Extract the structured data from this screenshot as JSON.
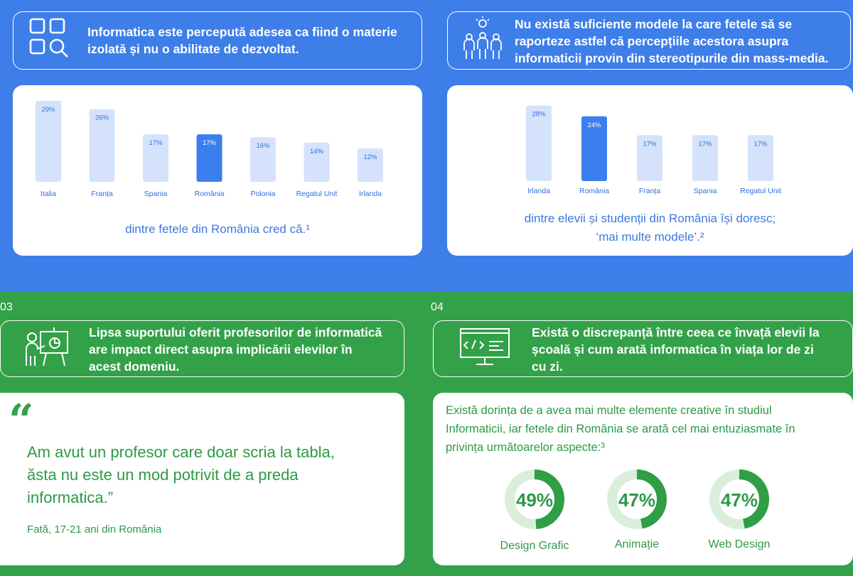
{
  "section1": {
    "header": "Informatica este percepută adesea ca fiind o materie izolată și nu o abilitate de dezvoltat.",
    "header_icon": "grid-search-icon",
    "caption": "dintre fetele din România cred că.¹"
  },
  "section2": {
    "header": "Nu există suficiente modele la care fetele să se raporteze astfel că percepțiile acestora asupra informaticii provin din stereotipurile din mass-media.",
    "header_icon": "people-idea-icon",
    "caption_line1": "dintre elevii și studenții din România își doresc;",
    "caption_line2": "‘mai multe modele’.²"
  },
  "section3": {
    "number": "03",
    "header": "Lipsa suportului oferit profesorilor de informatică are impact direct asupra implicării elevilor în acest domeniu.",
    "header_icon": "teacher-board-icon",
    "quote_mark": "“",
    "quote": "Am avut un profesor care doar scria la tabla, ăsta nu este un mod potrivit de a preda informatica.”",
    "author": "Fată, 17-21 ani din România"
  },
  "section4": {
    "number": "04",
    "header": "Există o discrepanță între ceea ce învață elevii la școală și cum arată informatica în viața lor de zi cu zi.",
    "header_icon": "code-monitor-icon",
    "intro": "Există dorința de a avea mai multe elemente creative în studiul Informaticii, iar fetele din România se arată cel mai entuziasmate în privința următoarelor aspecte:³"
  },
  "colors": {
    "blue_bg": "#3d7ee9",
    "green_bg": "#33a148",
    "bar_light": "#d4e3fb",
    "bar_highlight": "#3b7ef0",
    "donut_track": "#d9efdc",
    "donut_fill": "#2f9e45"
  },
  "chart_data": [
    {
      "type": "bar",
      "categories": [
        "Italia",
        "Franța",
        "Spania",
        "România",
        "Polonia",
        "Regatul Unit",
        "Irlanda"
      ],
      "values": [
        29,
        26,
        17,
        17,
        16,
        14,
        12
      ],
      "value_labels": [
        "29%",
        "26%",
        "17%",
        "17%",
        "16%",
        "14%",
        "12%"
      ],
      "highlight": "România",
      "ylim": [
        0,
        30
      ]
    },
    {
      "type": "bar",
      "categories": [
        "Irlanda",
        "România",
        "Franța",
        "Spania",
        "Regatul Unit"
      ],
      "values": [
        28,
        24,
        17,
        17,
        17
      ],
      "value_labels": [
        "28%",
        "24%",
        "17%",
        "17%",
        "17%"
      ],
      "highlight": "România",
      "ylim": [
        0,
        30
      ]
    },
    {
      "type": "pie",
      "categories": [
        "Design Grafic",
        "Animație",
        "Web Design"
      ],
      "values": [
        49,
        47,
        47
      ],
      "value_labels": [
        "49%",
        "47%",
        "47%"
      ]
    }
  ]
}
